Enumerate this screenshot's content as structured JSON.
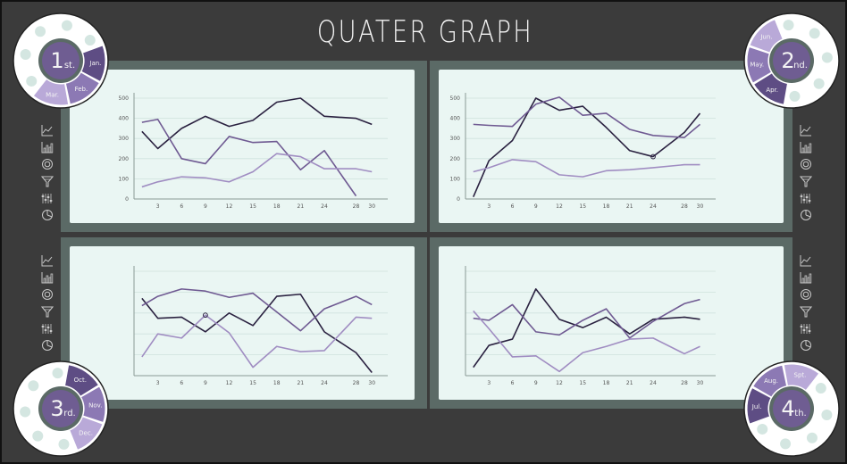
{
  "title": "QUATER GRAPH",
  "colors": {
    "background": "#3b3b3b",
    "frame": "#5b6a66",
    "panel": "#eaf6f3",
    "grid": "#cfe2dd",
    "series_dark": "#2a2140",
    "series_mid": "#6f5a92",
    "series_light": "#a08dc2",
    "badge_ring": "#5b6a66",
    "badge_center": "#6f5d92",
    "badge_seg1": "#5e4d84",
    "badge_seg2": "#8c79b4",
    "badge_seg3": "#b9a9d8",
    "dot": "#d4e6e1"
  },
  "side_icons": [
    "line-chart-icon",
    "bar-chart-icon",
    "donut-chart-icon",
    "funnel-icon",
    "equalizer-icon",
    "pie-chart-icon"
  ],
  "badges": [
    {
      "number": "1",
      "suffix": "st.",
      "months": [
        "Jan.",
        "Feb.",
        "Mar."
      ]
    },
    {
      "number": "2",
      "suffix": "nd.",
      "months": [
        "Apr.",
        "May.",
        "Jun."
      ]
    },
    {
      "number": "3",
      "suffix": "rd.",
      "months": [
        "Oct.",
        "Nov.",
        "Dec."
      ]
    },
    {
      "number": "4",
      "suffix": "th.",
      "months": [
        "Jul.",
        "Aug.",
        "Spt."
      ]
    }
  ],
  "chart_data": [
    {
      "type": "line",
      "x": [
        1,
        3,
        6,
        9,
        12,
        15,
        18,
        21,
        24,
        28,
        30
      ],
      "x_ticks": [
        "3",
        "6",
        "9",
        "12",
        "15",
        "18",
        "21",
        "24",
        "28",
        "30"
      ],
      "y_ticks": [
        "0",
        "100",
        "200",
        "300",
        "400",
        "500"
      ],
      "ylim": [
        0,
        500
      ],
      "grid": true,
      "series": [
        {
          "values": [
            335,
            250,
            350,
            410,
            360,
            390,
            480,
            500,
            410,
            400,
            370
          ]
        },
        {
          "values": [
            380,
            395,
            200,
            175,
            310,
            280,
            285,
            145,
            240,
            15,
            null
          ]
        },
        {
          "values": [
            60,
            85,
            110,
            105,
            85,
            135,
            225,
            210,
            150,
            150,
            135
          ]
        }
      ]
    },
    {
      "type": "line",
      "x": [
        1,
        3,
        6,
        9,
        12,
        15,
        18,
        21,
        24,
        28,
        30
      ],
      "x_ticks": [
        "3",
        "6",
        "9",
        "12",
        "15",
        "18",
        "21",
        "24",
        "28",
        "30"
      ],
      "y_ticks": [
        "0",
        "100",
        "200",
        "300",
        "400",
        "500"
      ],
      "ylim": [
        0,
        500
      ],
      "grid": true,
      "series": [
        {
          "values": [
            10,
            190,
            290,
            500,
            440,
            460,
            355,
            240,
            210,
            330,
            425
          ]
        },
        {
          "values": [
            370,
            365,
            360,
            470,
            505,
            415,
            425,
            345,
            315,
            305,
            370
          ]
        },
        {
          "values": [
            135,
            155,
            195,
            185,
            120,
            110,
            140,
            145,
            155,
            170,
            170
          ]
        }
      ],
      "markers": [
        {
          "x": 24,
          "y": 210
        }
      ]
    },
    {
      "type": "line",
      "x": [
        1,
        3,
        6,
        9,
        12,
        15,
        18,
        21,
        24,
        28,
        30
      ],
      "x_ticks": [
        "3",
        "6",
        "9",
        "12",
        "15",
        "18",
        "21",
        "24",
        "28",
        "30"
      ],
      "y_ticks": [],
      "ylim": [
        0,
        500
      ],
      "grid": true,
      "series": [
        {
          "values": [
            370,
            275,
            280,
            210,
            300,
            240,
            380,
            390,
            210,
            110,
            15
          ]
        },
        {
          "values": [
            335,
            380,
            415,
            405,
            375,
            395,
            305,
            215,
            320,
            380,
            340
          ]
        },
        {
          "values": [
            90,
            200,
            180,
            290,
            205,
            40,
            140,
            115,
            120,
            280,
            275
          ]
        }
      ],
      "markers": [
        {
          "x": 9,
          "y": 290
        }
      ]
    },
    {
      "type": "line",
      "x": [
        1,
        3,
        6,
        9,
        12,
        15,
        18,
        21,
        24,
        28,
        30
      ],
      "x_ticks": [
        "3",
        "6",
        "9",
        "12",
        "15",
        "18",
        "21",
        "24",
        "28",
        "30"
      ],
      "y_ticks": [],
      "ylim": [
        0,
        500
      ],
      "grid": true,
      "series": [
        {
          "values": [
            40,
            145,
            175,
            415,
            270,
            230,
            280,
            200,
            270,
            280,
            270
          ]
        },
        {
          "values": [
            275,
            265,
            340,
            210,
            195,
            265,
            320,
            180,
            260,
            345,
            365
          ]
        },
        {
          "values": [
            310,
            225,
            90,
            95,
            20,
            110,
            140,
            175,
            180,
            105,
            140
          ]
        }
      ]
    }
  ]
}
